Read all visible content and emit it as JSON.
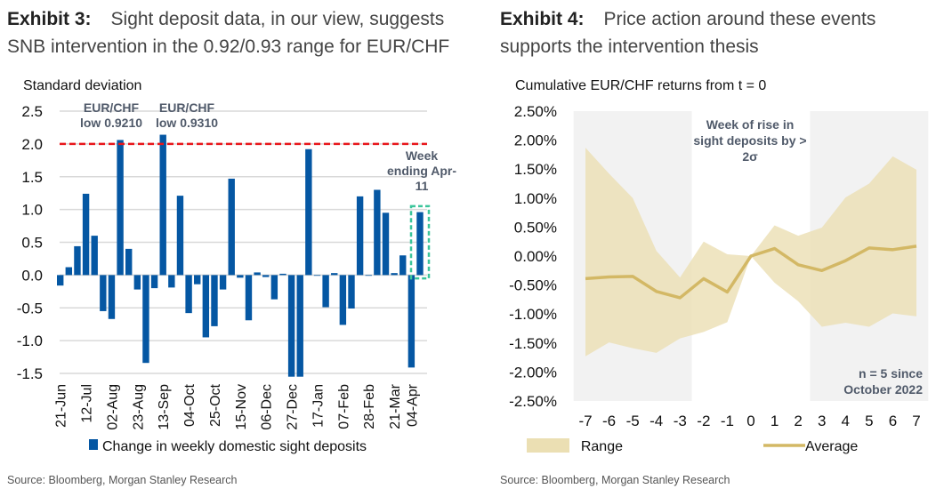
{
  "exhibit3": {
    "label": "Exhibit 3:",
    "title": "Sight deposit data, in our view, suggests SNB intervention in the 0.92/0.93 range for EUR/CHF",
    "source": "Source: Bloomberg, Morgan Stanley Research"
  },
  "exhibit4": {
    "label": "Exhibit 4:",
    "title": "Price action around these events supports the intervention thesis",
    "source": "Source: Bloomberg, Morgan Stanley Research"
  },
  "chart_data": [
    {
      "type": "bar",
      "ylabel": "Standard deviation",
      "ylim": [
        -1.5,
        2.5
      ],
      "yticks": [
        "2.5",
        "2.0",
        "1.5",
        "1.0",
        "0.5",
        "0.0",
        "-0.5",
        "-1.0",
        "-1.5"
      ],
      "xtick_labels": [
        "21-Jun",
        "12-Jul",
        "02-Aug",
        "23-Aug",
        "13-Sep",
        "04-Oct",
        "25-Oct",
        "15-Nov",
        "06-Dec",
        "27-Dec",
        "17-Jan",
        "07-Feb",
        "28-Feb",
        "21-Mar",
        "04-Apr"
      ],
      "xtick_indices": [
        0,
        3,
        6,
        9,
        12,
        15,
        18,
        21,
        24,
        27,
        30,
        33,
        36,
        39,
        41
      ],
      "series": [
        {
          "name": "Change in weekly domestic sight deposits",
          "color": "#0557a3",
          "values": [
            -0.16,
            0.12,
            0.44,
            1.24,
            0.6,
            -0.55,
            -0.67,
            2.06,
            0.4,
            -0.22,
            -1.34,
            -0.2,
            2.14,
            -0.19,
            1.21,
            -0.58,
            -0.14,
            -0.95,
            -0.78,
            -0.22,
            1.47,
            -0.04,
            -0.69,
            0.04,
            -0.03,
            -0.37,
            0.02,
            -1.55,
            -1.55,
            1.92,
            0.0,
            -0.49,
            0.03,
            -0.76,
            -0.51,
            1.2,
            0.0,
            1.3,
            0.95,
            0.03,
            0.3,
            -1.41,
            0.96
          ]
        }
      ],
      "threshold": {
        "value": 2.0,
        "color": "#e8161b"
      },
      "annotations": [
        {
          "text": [
            "EUR/CHF",
            "low 0.9210"
          ],
          "bar_index": 7
        },
        {
          "text": [
            "EUR/CHF",
            "low 0.9310"
          ],
          "bar_index": 12
        },
        {
          "text": [
            "Week",
            "ending Apr-",
            "11"
          ],
          "bar_index": 42
        }
      ],
      "highlight_color": "#3cc59b",
      "grid": true,
      "legend": "bottom"
    },
    {
      "type": "area",
      "ylabel": "Cumulative EUR/CHF returns from t = 0",
      "ylim": [
        -2.5,
        2.5
      ],
      "yticks": [
        "2.50%",
        "2.00%",
        "1.50%",
        "1.00%",
        "0.50%",
        "0.00%",
        "-0.50%",
        "-1.00%",
        "-1.50%",
        "-2.00%",
        "-2.50%"
      ],
      "x": [
        -7,
        -6,
        -5,
        -4,
        -3,
        -2,
        -1,
        0,
        1,
        2,
        3,
        4,
        5,
        6,
        7
      ],
      "series": [
        {
          "name": "Range",
          "color": "#ebdfb3",
          "upper": [
            1.87,
            1.42,
            1.0,
            0.09,
            -0.37,
            0.25,
            0.03,
            0.0,
            0.53,
            0.35,
            0.49,
            1.01,
            1.25,
            1.72,
            1.49
          ],
          "lower": [
            -1.73,
            -1.49,
            -1.59,
            -1.67,
            -1.42,
            -1.31,
            -1.14,
            0.0,
            -0.46,
            -0.78,
            -1.22,
            -1.15,
            -1.22,
            -0.99,
            -1.04
          ]
        },
        {
          "name": "Average",
          "color": "#d3b865",
          "values": [
            -0.39,
            -0.36,
            -0.35,
            -0.61,
            -0.72,
            -0.39,
            -0.62,
            0.0,
            0.13,
            -0.15,
            -0.25,
            -0.08,
            0.14,
            0.11,
            0.17
          ]
        }
      ],
      "shaded_ranges": [
        [
          -7.5,
          -2.5
        ],
        [
          2.5,
          7.5
        ]
      ],
      "annotations": [
        {
          "text": [
            "Week of rise in",
            "sight deposits by >",
            "2σ"
          ]
        },
        {
          "text": [
            "n = 5 since",
            "October 2022"
          ]
        }
      ],
      "grid": false,
      "legend": "bottom"
    }
  ]
}
